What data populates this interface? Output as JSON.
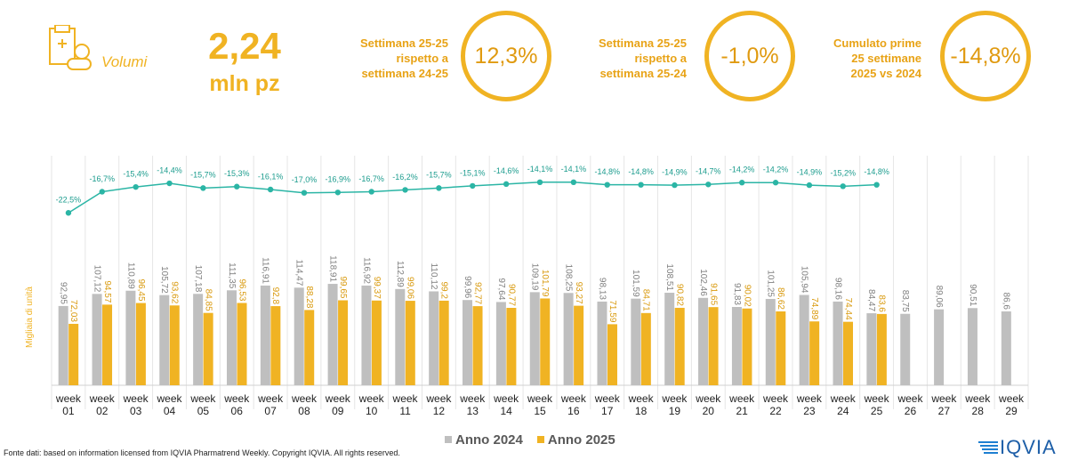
{
  "header": {
    "icon_label": "Volumi",
    "value": "2,24",
    "unit": "mln pz"
  },
  "kpis": [
    {
      "label_lines": [
        "Settimana 25-25",
        "rispetto a",
        "settimana 24-25"
      ],
      "value": "12,3%"
    },
    {
      "label_lines": [
        "Settimana 25-25",
        "rispetto a",
        "settimana 25-24"
      ],
      "value": "-1,0%"
    },
    {
      "label_lines": [
        "Cumulato prime",
        "25 settimane",
        "2025 vs 2024"
      ],
      "value": "-14,8%"
    }
  ],
  "chart_data": {
    "type": "bar",
    "y_label": "Migliaia di unità",
    "categories": [
      "week 01",
      "week 02",
      "week 03",
      "week 04",
      "week 05",
      "week 06",
      "week 07",
      "week 08",
      "week 09",
      "week 10",
      "week 11",
      "week 12",
      "week 13",
      "week 14",
      "week 15",
      "week 16",
      "week 17",
      "week 18",
      "week 19",
      "week 20",
      "week 21",
      "week 22",
      "week 23",
      "week 24",
      "week 25",
      "week 26",
      "week 27",
      "week 28",
      "week 29"
    ],
    "ylim": [
      0,
      120
    ],
    "y2lim": [
      -30,
      -10
    ],
    "grid": true,
    "legend": "bottom",
    "series": [
      {
        "name": "Anno 2024",
        "color": "#bfbfbf",
        "values": [
          92.95,
          107.12,
          110.89,
          105.72,
          107.18,
          111.35,
          116.91,
          114.47,
          118.91,
          116.92,
          112.89,
          110.12,
          99.96,
          97.64,
          109.19,
          108.25,
          98.13,
          101.59,
          108.51,
          102.46,
          91.83,
          101.25,
          105.94,
          98.16,
          84.47,
          83.75,
          89.06,
          90.51,
          86.6
        ],
        "value_labels": [
          "92,95",
          "107,12",
          "110,89",
          "105,72",
          "107,18",
          "111,35",
          "116,91",
          "114,47",
          "118,91",
          "116,92",
          "112,89",
          "110,12",
          "99,96",
          "97,64",
          "109,19",
          "108,25",
          "98,13",
          "101,59",
          "108,51",
          "102,46",
          "91,83",
          "101,25",
          "105,94",
          "98,16",
          "84,47",
          "83,75",
          "89,06",
          "90,51",
          "86,6"
        ]
      },
      {
        "name": "Anno 2025",
        "color": "#f0b323",
        "values": [
          72.03,
          94.57,
          96.45,
          93.62,
          84.85,
          96.53,
          92.8,
          88.28,
          99.65,
          99.37,
          99.06,
          99.2,
          92.77,
          90.77,
          101.79,
          93.27,
          71.59,
          84.71,
          90.82,
          91.65,
          90.02,
          86.62,
          74.89,
          74.44,
          83.6,
          null,
          null,
          null,
          null
        ],
        "value_labels": [
          "72,03",
          "94,57",
          "96,45",
          "93,62",
          "84,85",
          "96,53",
          "92,8",
          "88,28",
          "99,65",
          "99,37",
          "99,06",
          "99,2",
          "92,77",
          "90,77",
          "101,79",
          "93,27",
          "71,59",
          "84,71",
          "90,82",
          "91,65",
          "90,02",
          "86,62",
          "74,89",
          "74,44",
          "83,6",
          null,
          null,
          null,
          null
        ]
      },
      {
        "type": "line",
        "axis": "y2",
        "color": "#2bb5a5",
        "values": [
          -22.5,
          -16.7,
          -15.4,
          -14.4,
          -15.7,
          -15.3,
          -16.1,
          -17.0,
          -16.9,
          -16.7,
          -16.2,
          -15.7,
          -15.1,
          -14.6,
          -14.1,
          -14.1,
          -14.8,
          -14.8,
          -14.9,
          -14.7,
          -14.2,
          -14.2,
          -14.9,
          -15.2,
          -14.8,
          null,
          null,
          null,
          null
        ],
        "value_labels": [
          "-22,5%",
          "-16,7%",
          "-15,4%",
          "-14,4%",
          "-15,7%",
          "-15,3%",
          "-16,1%",
          "-17,0%",
          "-16,9%",
          "-16,7%",
          "-16,2%",
          "-15,7%",
          "-15,1%",
          "-14,6%",
          "-14,1%",
          "-14,1%",
          "-14,8%",
          "-14,8%",
          "-14,9%",
          "-14,7%",
          "-14,2%",
          "-14,2%",
          "-14,9%",
          "-15,2%",
          "-14,8%",
          null,
          null,
          null,
          null
        ]
      }
    ]
  },
  "footer": {
    "source": "Fonte dati: based on information licensed from IQVIA Pharmatrend Weekly. Copyright IQVIA. All rights reserved.",
    "logo": "IQVIA"
  }
}
